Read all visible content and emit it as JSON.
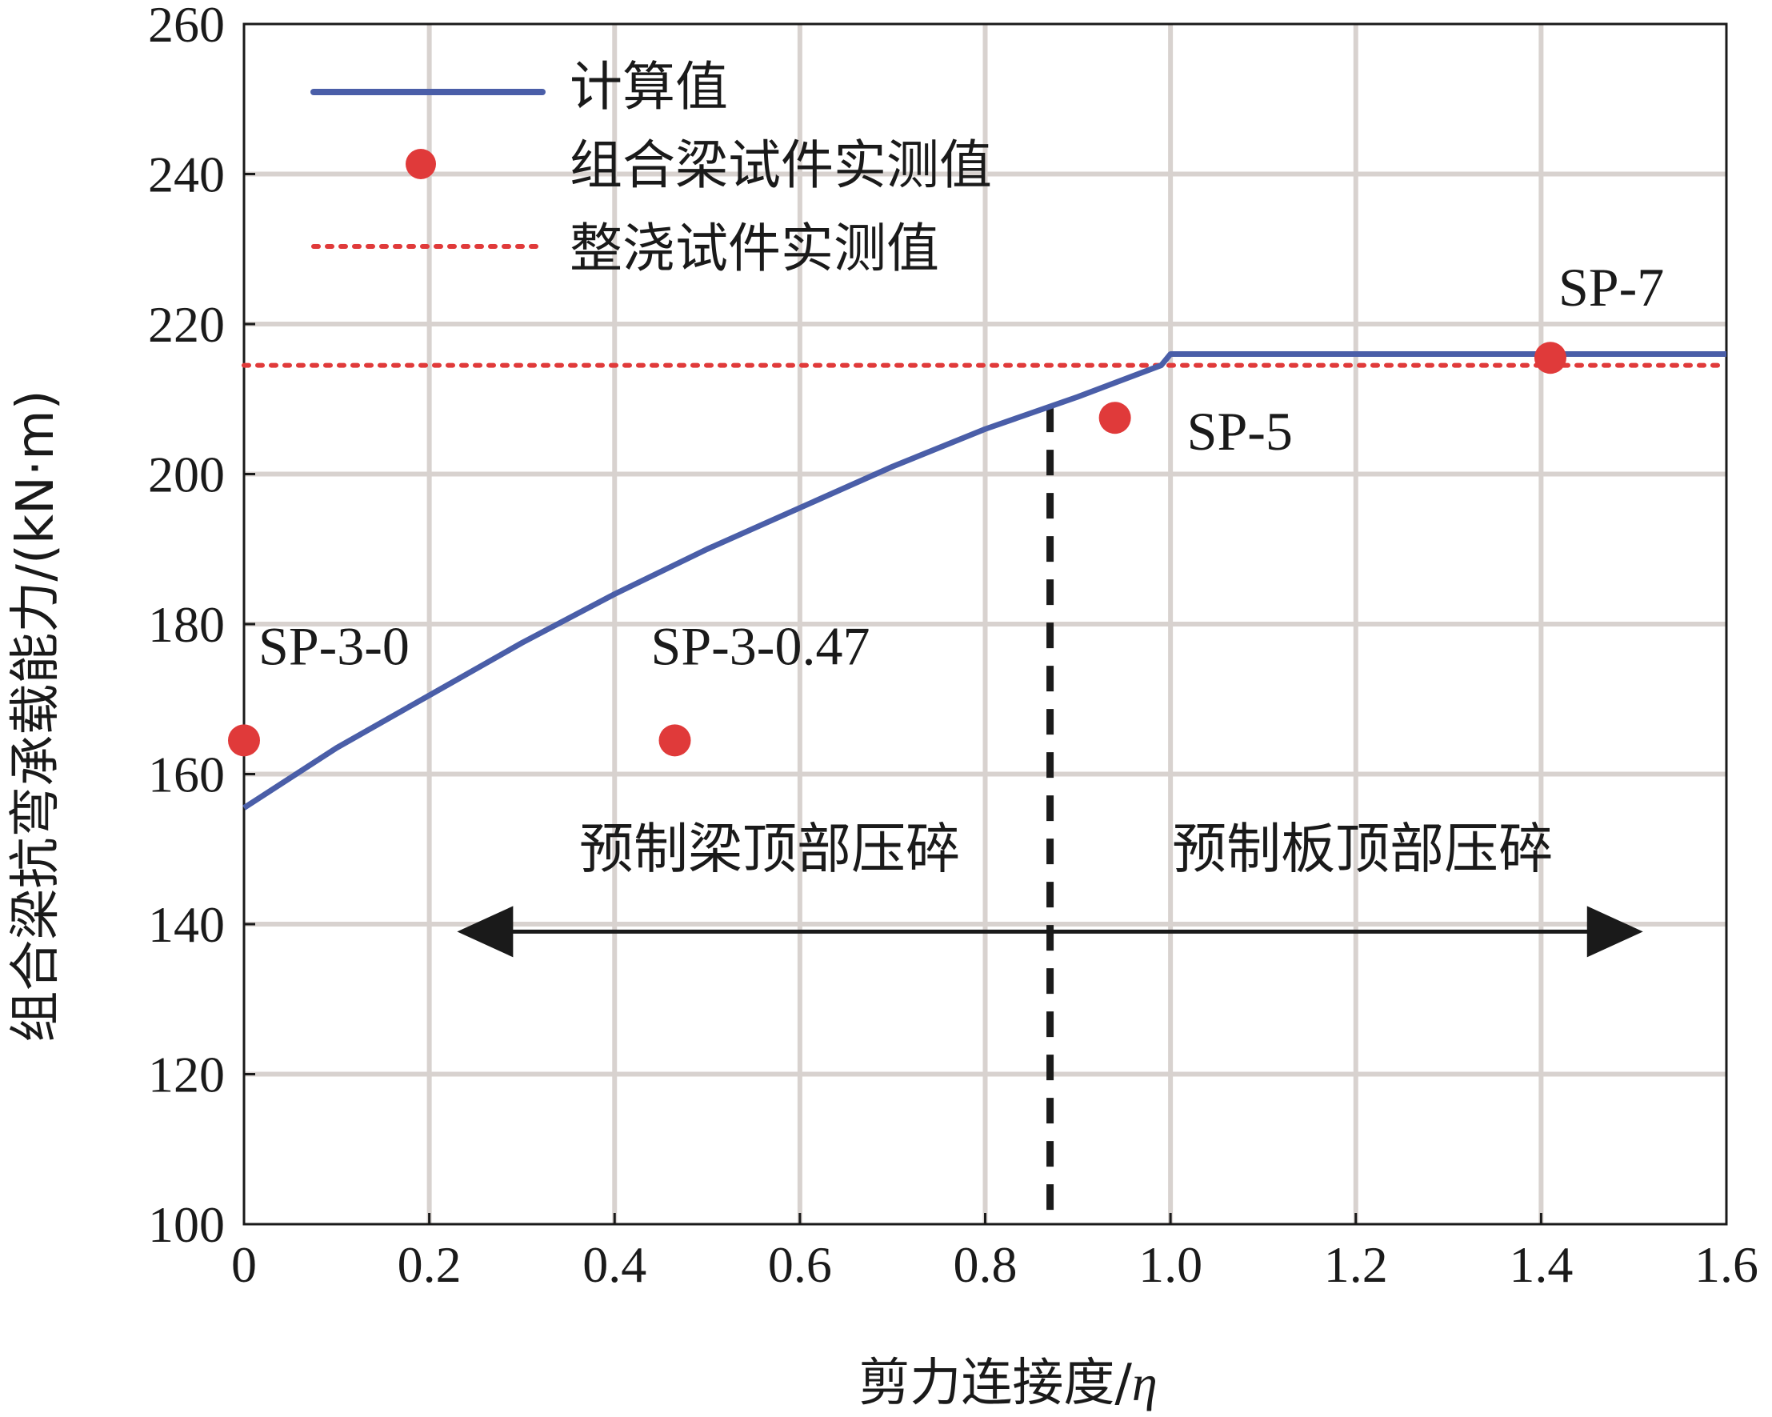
{
  "chart_data": {
    "type": "line",
    "xlabel": "剪力连接度/",
    "xlabel_symbol": "η",
    "ylabel": "组合梁抗弯承载能力/(kN·m)",
    "xlim": [
      0,
      1.6
    ],
    "ylim": [
      100,
      260
    ],
    "x_ticks": [
      0,
      0.2,
      0.4,
      0.6,
      0.8,
      1.0,
      1.2,
      1.4,
      1.6
    ],
    "x_tick_labels": [
      "0",
      "0.2",
      "0.4",
      "0.6",
      "0.8",
      "1.0",
      "1.2",
      "1.4",
      "1.6"
    ],
    "y_ticks": [
      100,
      120,
      140,
      160,
      180,
      200,
      220,
      240,
      260
    ],
    "y_tick_labels": [
      "100",
      "120",
      "140",
      "160",
      "180",
      "200",
      "220",
      "240",
      "260"
    ],
    "grid": true,
    "legend_position": "top-left",
    "series": [
      {
        "name": "计算值",
        "style": "line",
        "color": "#4a5ea8",
        "x": [
          0,
          0.1,
          0.2,
          0.3,
          0.4,
          0.5,
          0.6,
          0.7,
          0.8,
          0.9,
          0.99,
          1.0,
          1.6
        ],
        "y": [
          155.5,
          163.5,
          170.5,
          177.5,
          184,
          190,
          195.5,
          201,
          206,
          210.3,
          214.5,
          216,
          216
        ]
      },
      {
        "name": "组合梁试件实测值",
        "style": "scatter",
        "color": "#e03a3a",
        "x": [
          0,
          0.465,
          0.94,
          1.41
        ],
        "y": [
          164.5,
          164.5,
          207.5,
          215.5
        ],
        "labels": [
          "SP-3-0",
          "SP-3-0.47",
          "SP-5",
          "SP-7"
        ]
      },
      {
        "name": "整浇试件实测值",
        "style": "dotted-hline",
        "color": "#e03a3a",
        "y": 214.5
      }
    ],
    "annotations": {
      "divider_x": 0.87,
      "left_region_label": "预制梁顶部压碎",
      "right_region_label": "预制板顶部压碎",
      "arrow_from_x": 0.23,
      "arrow_to_x": 1.51,
      "arrow_y": 139
    }
  }
}
